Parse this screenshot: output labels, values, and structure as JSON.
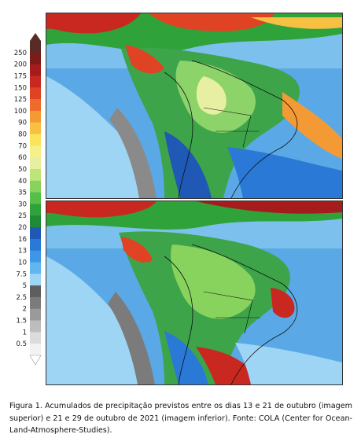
{
  "legend": {
    "labels": [
      "250",
      "200",
      "175",
      "150",
      "125",
      "100",
      "90",
      "80",
      "70",
      "60",
      "50",
      "40",
      "35",
      "30",
      "25",
      "20",
      "16",
      "13",
      "10",
      "7.5",
      "5",
      "2.5",
      "2",
      "1.5",
      "1",
      "0.5"
    ],
    "colors": [
      "#5a2a26",
      "#7b1c18",
      "#a61c1c",
      "#c8281f",
      "#e04323",
      "#ee6b2c",
      "#f49a34",
      "#f7c043",
      "#fbe35a",
      "#f6f08a",
      "#e7f0a2",
      "#bde57a",
      "#88d35d",
      "#55bf47",
      "#2fa33a",
      "#1f8a35",
      "#1f58b5",
      "#2a79d6",
      "#3d97e6",
      "#62b5ee",
      "#9fd5f4",
      "#5e5e5e",
      "#7b7b7b",
      "#9a9a9a",
      "#bdbdbd",
      "#dcdcdc",
      "#f2f2f2"
    ]
  },
  "maps": [
    {
      "description": "Acumulado 13 a 21 de outubro",
      "position": "superior"
    },
    {
      "description": "Acumulado 21 a 29 de outubro",
      "position": "inferior"
    }
  ],
  "caption": {
    "text": "Figura 1. Acumulados de precipitação previstos entre os dias 13 e 21 de outubro (imagem superior) e 21 e 29 de outubro de 2021 (imagem inferior). Fonte: COLA (Center for Ocean-Land-Atmosphere-Studies)."
  }
}
